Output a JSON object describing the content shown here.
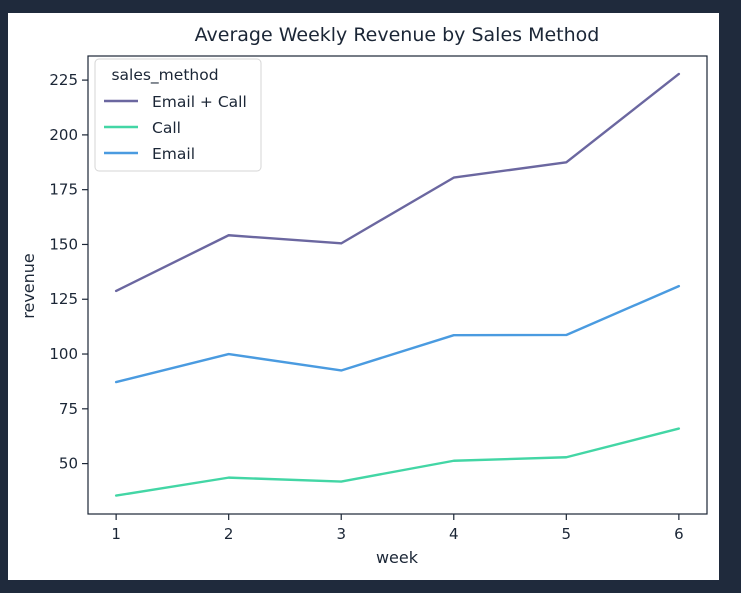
{
  "chart_data": {
    "type": "line",
    "title": "Average Weekly Revenue by Sales Method",
    "xlabel": "week",
    "ylabel": "revenue",
    "x": [
      1,
      2,
      3,
      4,
      5,
      6
    ],
    "xlim": [
      0.75,
      6.25
    ],
    "ylim": [
      27,
      236
    ],
    "yticks": [
      50,
      75,
      100,
      125,
      150,
      175,
      200,
      225
    ],
    "grid": false,
    "legend": {
      "title": "sales_method",
      "placement": "top-left"
    },
    "series": [
      {
        "name": "Email + Call",
        "color": "#6b67a0",
        "values": [
          128.8,
          154.2,
          150.5,
          180.5,
          187.5,
          227.8
        ]
      },
      {
        "name": "Call",
        "color": "#43d6a5",
        "values": [
          35.4,
          43.6,
          41.8,
          51.3,
          52.9,
          66.0
        ]
      },
      {
        "name": "Email",
        "color": "#4a9be0",
        "values": [
          87.2,
          100.0,
          92.5,
          108.6,
          108.7,
          131.0
        ]
      }
    ]
  }
}
